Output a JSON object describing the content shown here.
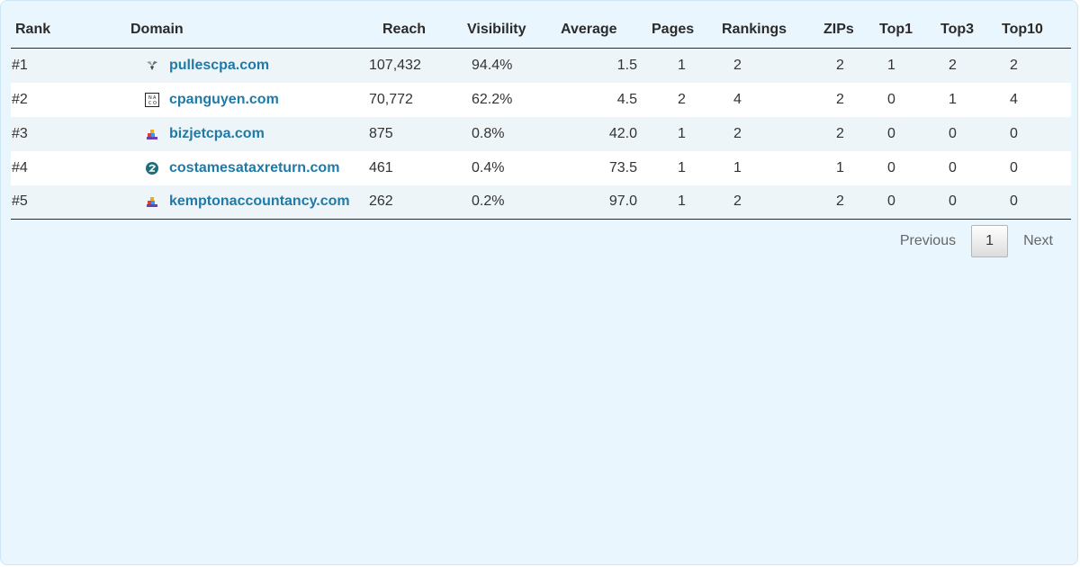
{
  "table": {
    "headers": [
      "Rank",
      "Domain",
      "Reach",
      "Visibility",
      "Average",
      "Pages",
      "Rankings",
      "ZIPs",
      "Top1",
      "Top3",
      "Top10"
    ],
    "rows": [
      {
        "rank": "#1",
        "domain": "pullescpa.com",
        "icon": "pulles-logo-icon",
        "reach": "107,432",
        "visibility": "94.4%",
        "average": "1.5",
        "pages": "1",
        "rankings": "2",
        "zips": "2",
        "top1": "1",
        "top3": "2",
        "top10": "2"
      },
      {
        "rank": "#2",
        "domain": "cpanguyen.com",
        "icon": "naco-logo-icon",
        "reach": "70,772",
        "visibility": "62.2%",
        "average": "4.5",
        "pages": "2",
        "rankings": "4",
        "zips": "2",
        "top1": "0",
        "top3": "1",
        "top10": "4"
      },
      {
        "rank": "#3",
        "domain": "bizjetcpa.com",
        "icon": "blocks-logo-icon",
        "reach": "875",
        "visibility": "0.8%",
        "average": "42.0",
        "pages": "1",
        "rankings": "2",
        "zips": "2",
        "top1": "0",
        "top3": "0",
        "top10": "0"
      },
      {
        "rank": "#4",
        "domain": "costamesataxreturn.com",
        "icon": "circle-logo-icon",
        "reach": "461",
        "visibility": "0.4%",
        "average": "73.5",
        "pages": "1",
        "rankings": "1",
        "zips": "1",
        "top1": "0",
        "top3": "0",
        "top10": "0"
      },
      {
        "rank": "#5",
        "domain": "kemptonaccountancy.com",
        "icon": "blocks-logo-icon",
        "reach": "262",
        "visibility": "0.2%",
        "average": "97.0",
        "pages": "1",
        "rankings": "2",
        "zips": "2",
        "top1": "0",
        "top3": "0",
        "top10": "0"
      }
    ]
  },
  "pager": {
    "previous": "Previous",
    "current": "1",
    "next": "Next"
  },
  "colors": {
    "panel_bg": "#eaf6fd",
    "link": "#1f7aa8",
    "row_alt": "#edf5f8"
  }
}
